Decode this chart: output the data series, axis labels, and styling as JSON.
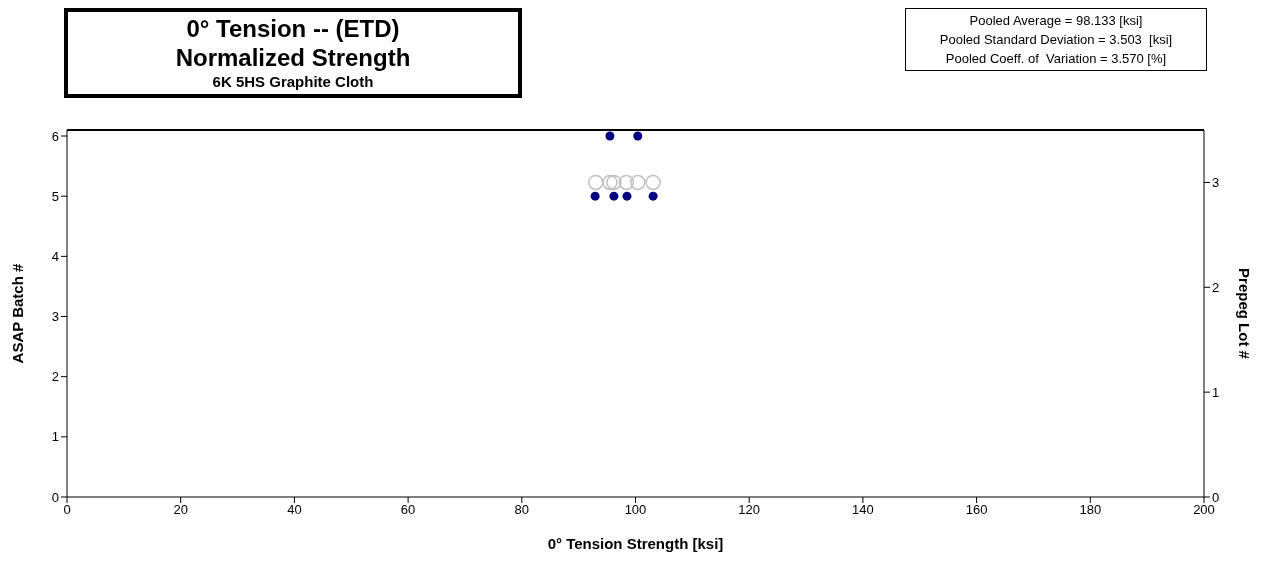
{
  "chart_data": {
    "type": "scatter",
    "title": "0° Tension -- (ETD)\nNormalized Strength",
    "subtitle": "6K 5HS Graphite Cloth",
    "xlabel": "0° Tension Strength  [ksi]",
    "ylabel": "ASAP Batch #",
    "y2label": "Prepeg Lot #",
    "annotations": [
      "Pooled Average = 98.133 [ksi]",
      "Pooled Standard Deviation = 3.503  [ksi]",
      "Pooled Coeff. of  Variation = 3.570 [%]"
    ],
    "xlim": [
      0,
      200
    ],
    "xticks": [
      0,
      20,
      40,
      60,
      80,
      100,
      120,
      140,
      160,
      180,
      200
    ],
    "ylim": [
      0,
      6.1
    ],
    "yticks": [
      0,
      1,
      2,
      3,
      4,
      5,
      6
    ],
    "y2lim": [
      0,
      3.5
    ],
    "y2ticks": [
      0,
      1,
      2,
      3
    ],
    "marker": "circle",
    "series": [
      {
        "color": "#000080",
        "x": [
          95.5,
          100.4,
          92.9,
          96.2,
          98.5,
          103.1
        ],
        "values": [
          6,
          6,
          5,
          5,
          5,
          5
        ]
      },
      {
        "color": "#c0c0c0",
        "axis": "y2",
        "x": [
          93,
          95.5,
          96.2,
          98.4,
          100.4,
          103.1
        ],
        "values": [
          3,
          3,
          3,
          3,
          3,
          3
        ]
      }
    ]
  }
}
